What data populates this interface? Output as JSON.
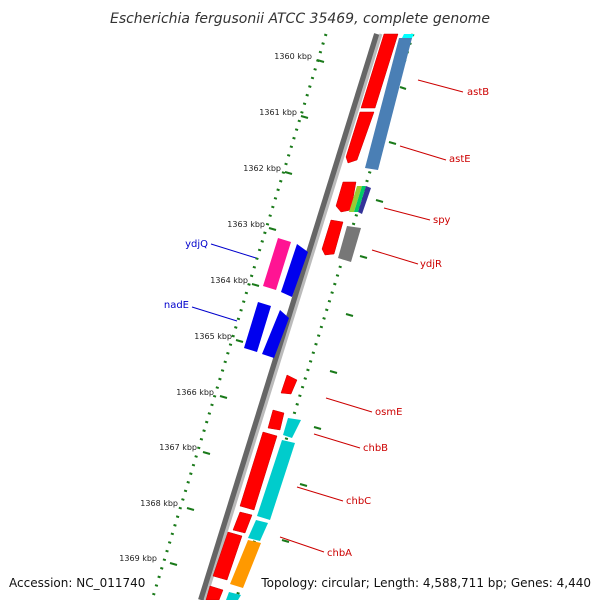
{
  "title": "Escherichia fergusonii ATCC 35469, complete genome",
  "footer": {
    "accession": "Accession: NC_011740",
    "summary": "Topology: circular; Length: 4,588,711 bp; Genes: 4,440"
  },
  "ticks": [
    "1360 kbp",
    "1361 kbp",
    "1362 kbp",
    "1363 kbp",
    "1364 kbp",
    "1365 kbp",
    "1366 kbp",
    "1367 kbp",
    "1368 kbp",
    "1369 kbp"
  ],
  "genes_right": [
    "astB",
    "astE",
    "spy",
    "ydjR",
    "osmE",
    "chbB",
    "chbC",
    "chbA"
  ],
  "genes_left": [
    "ydjQ",
    "nadE"
  ],
  "colors": {
    "cds_red": "#ff0000",
    "cog_blue": "#4a7fb5",
    "cog_cyan": "#00cccc",
    "cog_orange": "#ff9900",
    "cog_magenta": "#ff1493",
    "strand_blue": "#0000ee",
    "backbone_gray": "#888888",
    "tick_green": "#1a7a1a",
    "label_red": "#cc0000",
    "label_blue": "#0000cc"
  }
}
